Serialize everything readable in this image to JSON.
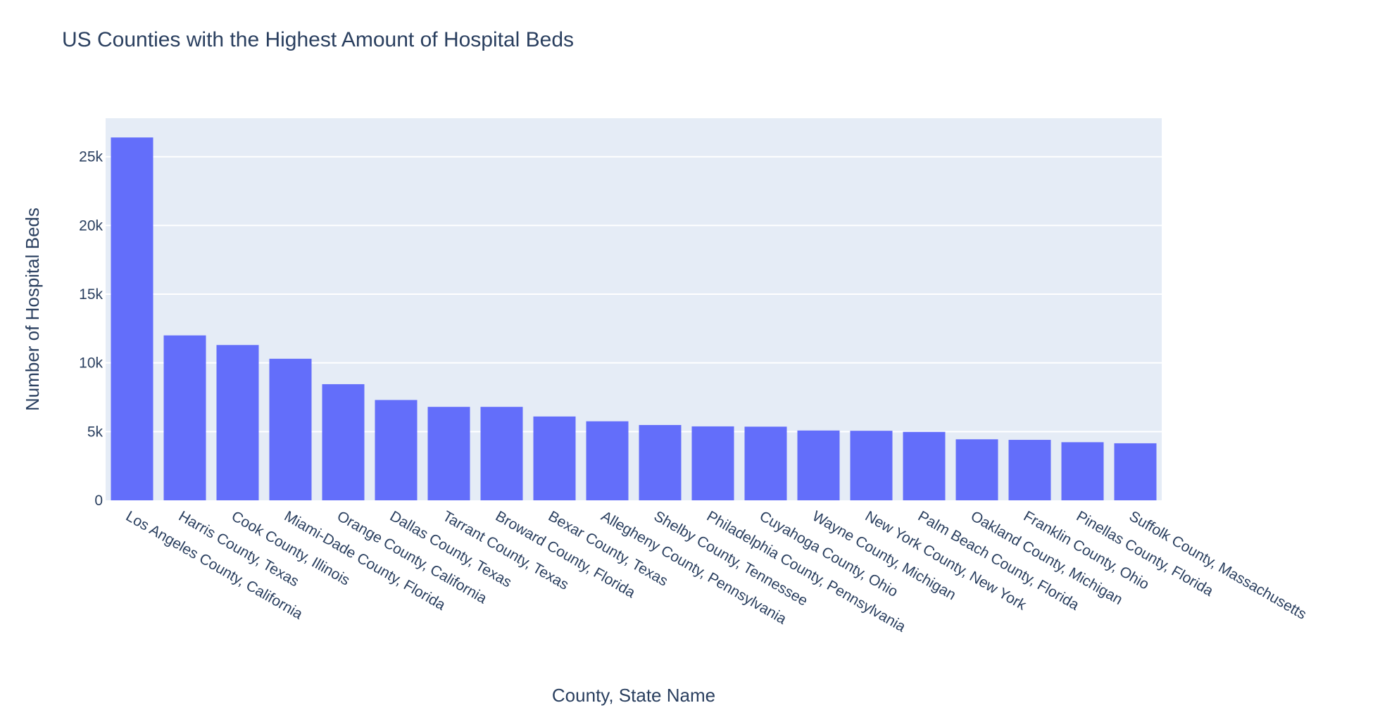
{
  "chart_data": {
    "type": "bar",
    "title": "US Counties with the Highest Amount of Hospital Beds",
    "xlabel": "County, State Name",
    "ylabel": "Number of Hospital Beds",
    "ylim": [
      0,
      27800
    ],
    "yticks": [
      0,
      5000,
      10000,
      15000,
      20000,
      25000
    ],
    "ytick_labels": [
      "0",
      "5k",
      "10k",
      "15k",
      "20k",
      "25k"
    ],
    "grid": true,
    "bar_color": "#636efa",
    "plot_bg_color": "#e5ecf6",
    "text_color": "#2a3f5f",
    "categories": [
      "Los Angeles County, California",
      "Harris County, Texas",
      "Cook County, Illinois",
      "Miami-Dade County, Florida",
      "Orange County, California",
      "Dallas County, Texas",
      "Tarrant County, Texas",
      "Broward County, Florida",
      "Bexar County, Texas",
      "Allegheny County, Pennsylvania",
      "Shelby County, Tennessee",
      "Philadelphia County, Pennsylvania",
      "Cuyahoga County, Ohio",
      "Wayne County, Michigan",
      "New York County, New York",
      "Palm Beach County, Florida",
      "Oakland County, Michigan",
      "Franklin County, Ohio",
      "Pinellas County, Florida",
      "Suffolk County, Massachusetts"
    ],
    "values": [
      26400,
      12000,
      11300,
      10300,
      8450,
      7300,
      6800,
      6800,
      6100,
      5750,
      5480,
      5380,
      5360,
      5080,
      5060,
      4980,
      4440,
      4400,
      4230,
      4150
    ]
  }
}
